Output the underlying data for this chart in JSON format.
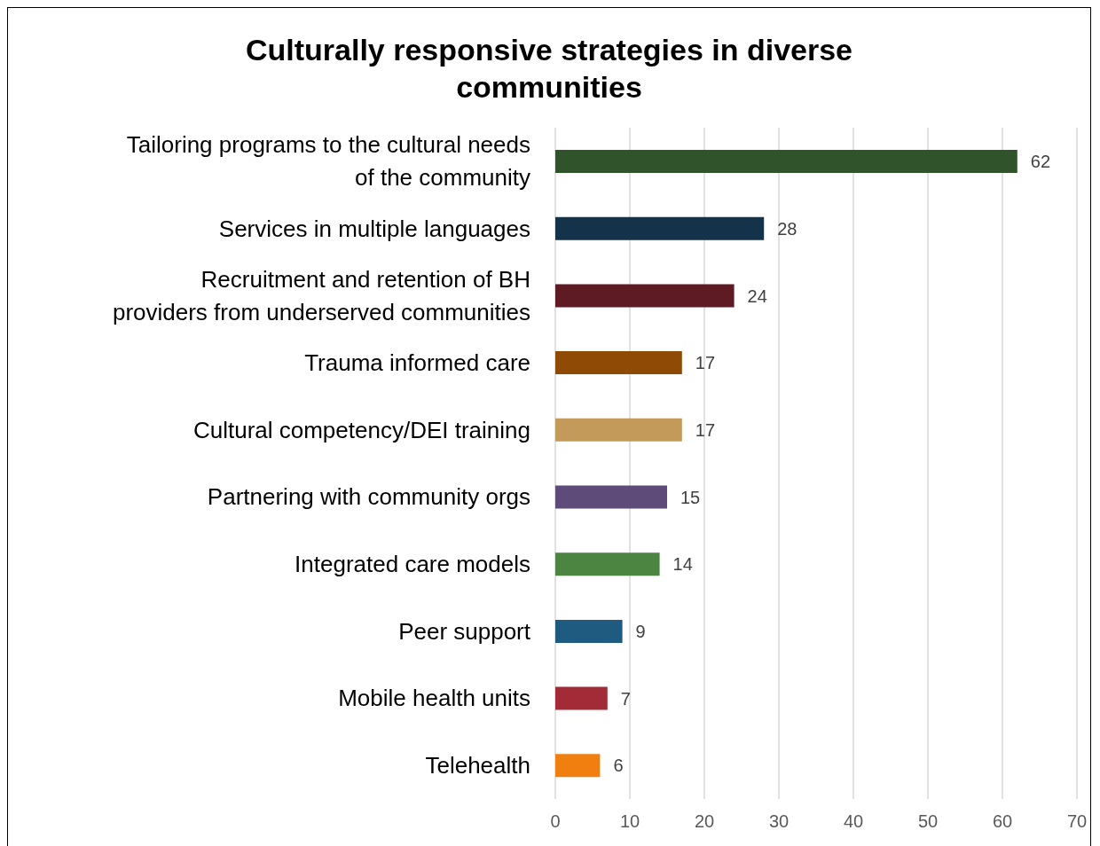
{
  "chart_data": {
    "type": "bar",
    "orientation": "horizontal",
    "title": "Culturally responsive strategies in diverse communities",
    "categories": [
      "Tailoring programs to the cultural needs of the community",
      "Services in multiple languages",
      "Recruitment and retention of BH providers from underserved communities",
      "Trauma informed care",
      "Cultural competency/DEI training",
      "Partnering with community orgs",
      "Integrated care models",
      "Peer support",
      "Mobile health units",
      "Telehealth"
    ],
    "values": [
      62,
      28,
      24,
      17,
      17,
      15,
      14,
      9,
      7,
      6
    ],
    "colors": [
      "#31532b",
      "#14334a",
      "#5e1b24",
      "#8f4a05",
      "#c49a5a",
      "#5f4b7a",
      "#4c8541",
      "#1f5a80",
      "#a32a37",
      "#ef7f0f"
    ],
    "xlim": [
      0,
      70
    ],
    "xticks": [
      0,
      10,
      20,
      30,
      40,
      50,
      60,
      70
    ],
    "grid": "x",
    "data_labels": true
  }
}
